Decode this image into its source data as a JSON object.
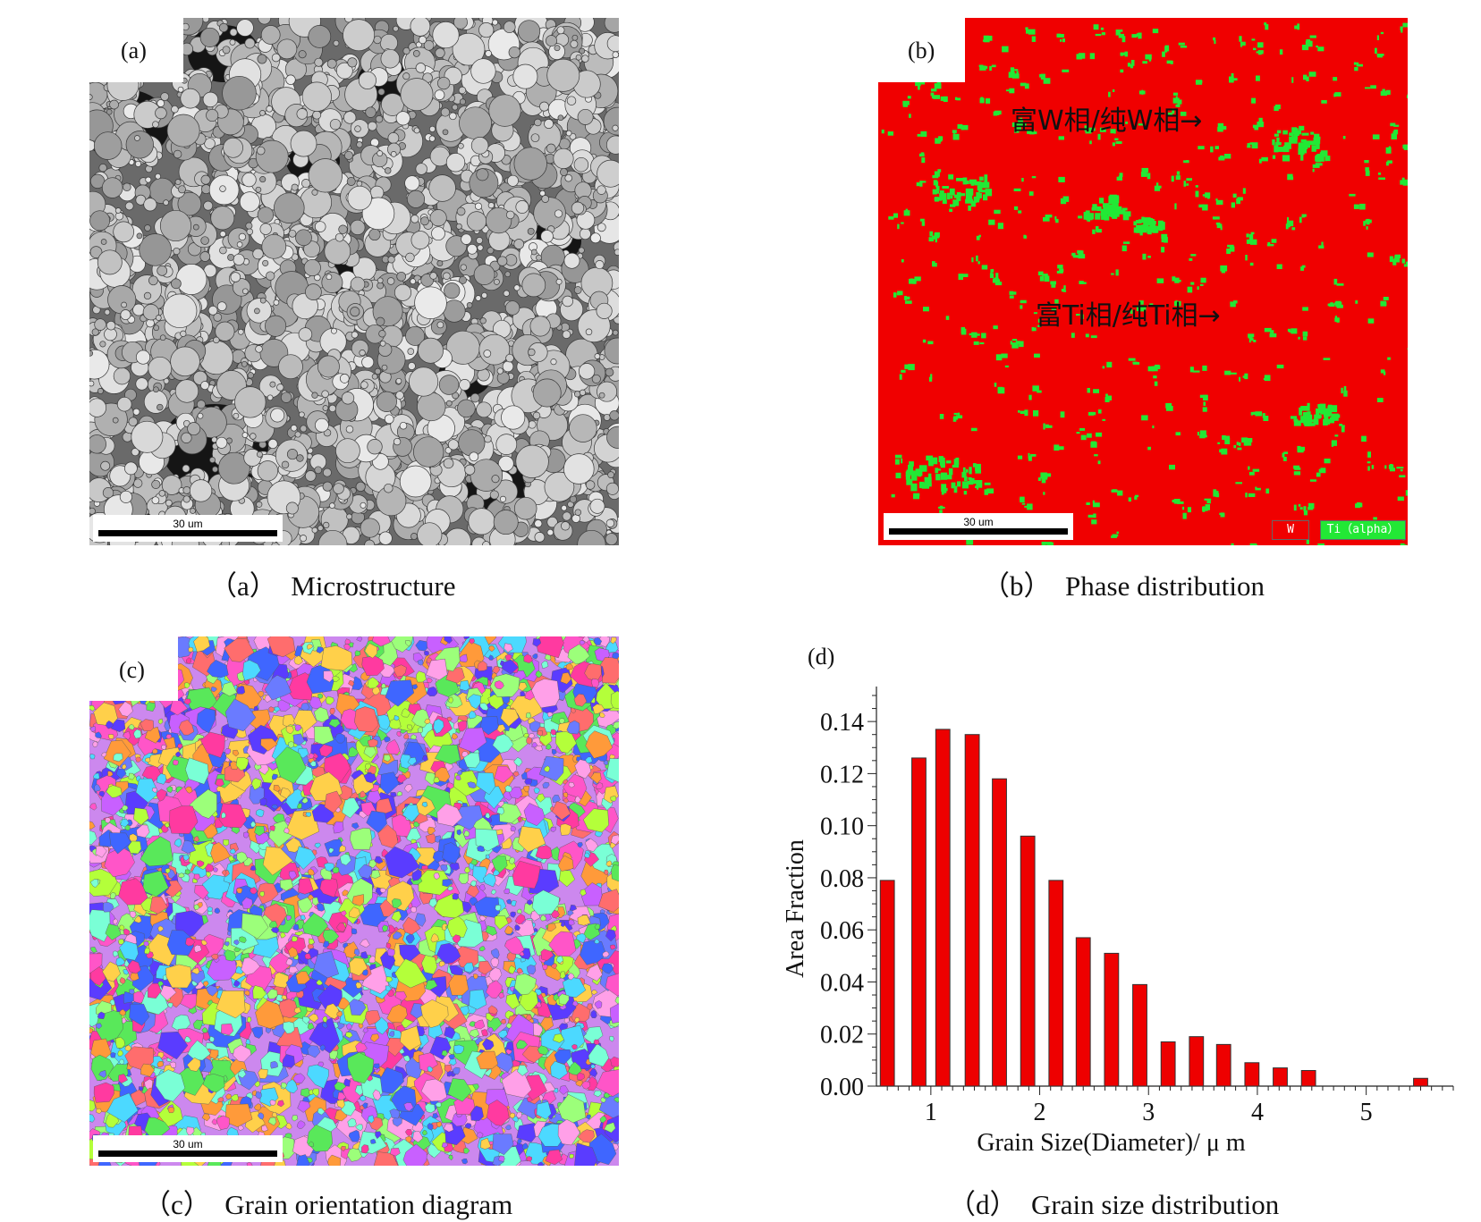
{
  "colors": {
    "phase_w": "#f00000",
    "phase_ti": "#22e835",
    "bar_fill": "#ee0000",
    "bar_stroke": "#333333"
  },
  "panel_a": {
    "tag": "(a)",
    "caption": "（a）  Microstructure",
    "scale_label": "30 um"
  },
  "panel_b": {
    "tag": "(b)",
    "caption": "（b）  Phase distribution",
    "scale_label": "30 um",
    "annotation_w": "富W相/纯W相→",
    "annotation_ti": "富Ti相/纯Ti相→",
    "legend": [
      "W",
      "Ti（alpha）"
    ]
  },
  "panel_c": {
    "tag": "(c)",
    "caption": "（c）  Grain orientation diagram",
    "scale_label": "30 um"
  },
  "panel_d": {
    "tag": "(d)",
    "caption": "（d）  Grain size distribution"
  },
  "chart_data": {
    "type": "bar",
    "title": "",
    "xlabel": "Grain Size(Diameter)/ μ m",
    "ylabel": "Area Fraction",
    "xlim": [
      0.5,
      5.8
    ],
    "ylim": [
      0,
      0.15
    ],
    "x_ticks": [
      1,
      2,
      3,
      4,
      5
    ],
    "y_ticks": [
      "0.00",
      "0.02",
      "0.04",
      "0.06",
      "0.08",
      "0.10",
      "0.12",
      "0.14"
    ],
    "x": [
      0.6,
      0.89,
      1.11,
      1.38,
      1.63,
      1.89,
      2.15,
      2.4,
      2.66,
      2.92,
      3.18,
      3.44,
      3.69,
      3.95,
      4.21,
      4.47,
      4.72,
      4.98,
      5.24,
      5.5
    ],
    "values": [
      0.079,
      0.126,
      0.137,
      0.135,
      0.118,
      0.096,
      0.079,
      0.057,
      0.051,
      0.039,
      0.017,
      0.019,
      0.016,
      0.009,
      0.007,
      0.006,
      0.0,
      0.0,
      0.0,
      0.003
    ],
    "bar_width": 0.13,
    "grid": false,
    "legend": "none"
  }
}
